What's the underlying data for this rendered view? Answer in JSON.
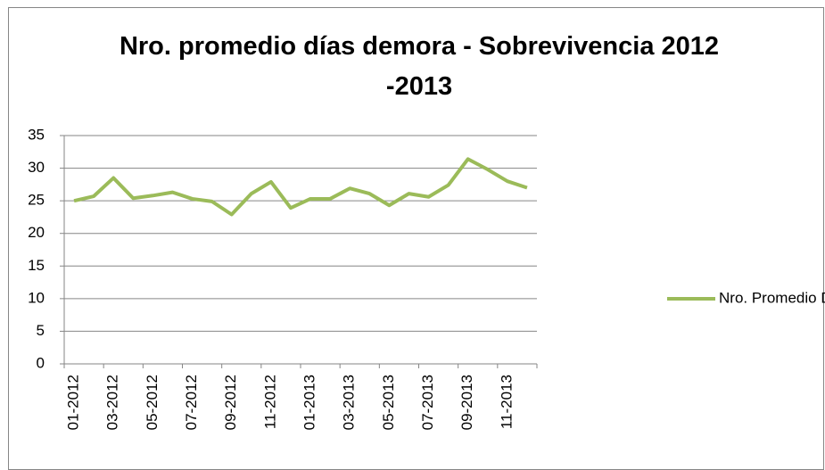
{
  "chart_data": {
    "type": "line",
    "title": "Nro. promedio días demora - Sobrevivencia 2012 -2013",
    "categories": [
      "01-2012",
      null,
      "03-2012",
      null,
      "05-2012",
      null,
      "07-2012",
      null,
      "09-2012",
      null,
      "11-2012",
      null,
      "01-2013",
      null,
      "03-2013",
      null,
      "05-2013",
      null,
      "07-2013",
      null,
      "09-2013",
      null,
      "11-2013",
      null
    ],
    "series": [
      {
        "name": "Nro. Promedio Días",
        "color": "#9bbb59",
        "values": [
          25.0,
          25.7,
          28.5,
          25.4,
          25.8,
          26.3,
          25.3,
          24.9,
          22.9,
          26.1,
          27.9,
          23.9,
          25.3,
          25.3,
          26.9,
          26.1,
          24.3,
          26.1,
          25.6,
          27.4,
          31.4,
          29.8,
          28.0,
          27.0
        ]
      }
    ],
    "ylim": [
      0,
      35
    ],
    "yticks": [
      0,
      5,
      10,
      15,
      20,
      25,
      30,
      35
    ],
    "grid": true,
    "legend": "right"
  }
}
